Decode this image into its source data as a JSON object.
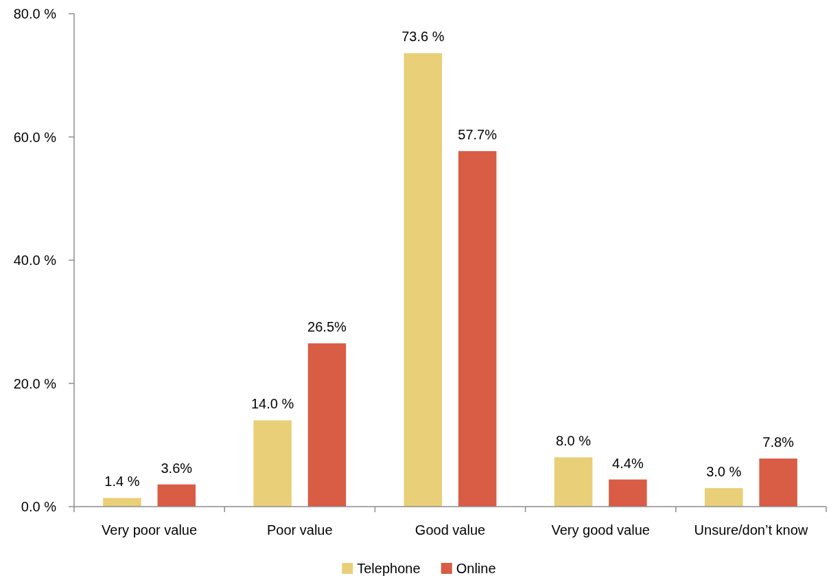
{
  "chart_data": {
    "type": "bar",
    "categories": [
      "Very poor value",
      "Poor value",
      "Good value",
      "Very good value",
      "Unsure/don’t know"
    ],
    "series": [
      {
        "name": "Telephone",
        "color": "#e9cf78",
        "values": [
          1.4,
          14.0,
          73.6,
          8.0,
          3.0
        ],
        "value_labels": [
          "1.4 %",
          "14.0 %",
          "73.6 %",
          "8.0 %",
          "3.0 %"
        ]
      },
      {
        "name": "Online",
        "color": "#d95c45",
        "values": [
          3.6,
          26.5,
          57.7,
          4.4,
          7.8
        ],
        "value_labels": [
          "3.6%",
          "26.5%",
          "57.7%",
          "4.4%",
          "7.8%"
        ]
      }
    ],
    "ylim": [
      0,
      80
    ],
    "yticks": [
      {
        "value": 0,
        "label": "0.0 %"
      },
      {
        "value": 20,
        "label": "20.0 %"
      },
      {
        "value": 40,
        "label": "40.0 %"
      },
      {
        "value": 60,
        "label": "60.0 %"
      },
      {
        "value": 80,
        "label": "80.0 %"
      }
    ],
    "grid": false,
    "legend": "bottom"
  }
}
